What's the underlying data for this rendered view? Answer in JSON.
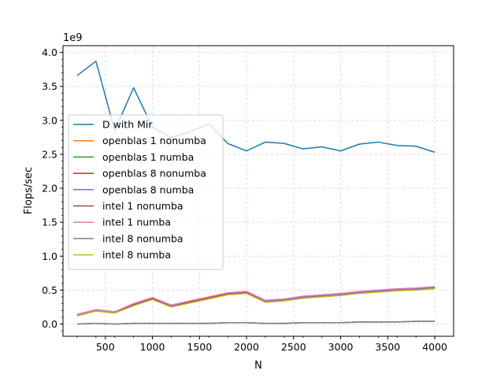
{
  "chart_data": {
    "type": "line",
    "title": "",
    "xlabel": "N",
    "ylabel": "Flops/sec",
    "y_scale_label": "1e9",
    "y_scale": 1000000000,
    "xlim": [
      50,
      4200
    ],
    "ylim": [
      -0.18,
      4.1
    ],
    "x_ticks": [
      500,
      1000,
      1500,
      2000,
      2500,
      3000,
      3500,
      4000
    ],
    "x_tick_labels": [
      "500",
      "1000",
      "1500",
      "2000",
      "2500",
      "3000",
      "3500",
      "4000"
    ],
    "y_ticks": [
      0.0,
      0.5,
      1.0,
      1.5,
      2.0,
      2.5,
      3.0,
      3.5,
      4.0
    ],
    "y_tick_labels": [
      "0.0",
      "0.5",
      "1.0",
      "1.5",
      "2.0",
      "2.5",
      "3.0",
      "3.5",
      "4.0"
    ],
    "grid": true,
    "legend_position": "center-left",
    "x": [
      200,
      400,
      600,
      800,
      1000,
      1200,
      1400,
      1600,
      1800,
      2000,
      2200,
      2400,
      2600,
      2800,
      3000,
      3200,
      3400,
      3600,
      3800,
      4000
    ],
    "series": [
      {
        "name": "D with Mir",
        "color": "#1f77b4",
        "values": [
          3.66,
          3.87,
          2.85,
          3.48,
          2.9,
          2.75,
          2.83,
          2.95,
          2.66,
          2.55,
          2.68,
          2.66,
          2.58,
          2.61,
          2.55,
          2.65,
          2.68,
          2.63,
          2.62,
          2.53
        ]
      },
      {
        "name": "openblas 1 nonumba",
        "color": "#ff7f0e",
        "values": [
          0.13,
          0.2,
          0.17,
          0.28,
          0.37,
          0.26,
          0.32,
          0.38,
          0.44,
          0.46,
          0.33,
          0.35,
          0.39,
          0.41,
          0.43,
          0.46,
          0.48,
          0.5,
          0.51,
          0.53
        ]
      },
      {
        "name": "openblas 1 numba",
        "color": "#2ca02c",
        "values": [
          0.13,
          0.2,
          0.17,
          0.28,
          0.37,
          0.26,
          0.32,
          0.38,
          0.44,
          0.46,
          0.33,
          0.35,
          0.39,
          0.41,
          0.43,
          0.46,
          0.48,
          0.5,
          0.51,
          0.53
        ]
      },
      {
        "name": "openblas 8 nonumba",
        "color": "#d62728",
        "values": [
          0.14,
          0.21,
          0.18,
          0.29,
          0.38,
          0.27,
          0.33,
          0.39,
          0.45,
          0.47,
          0.34,
          0.36,
          0.4,
          0.42,
          0.44,
          0.47,
          0.49,
          0.51,
          0.52,
          0.54
        ]
      },
      {
        "name": "openblas 8 numba",
        "color": "#9467bd",
        "values": [
          0.14,
          0.21,
          0.18,
          0.3,
          0.39,
          0.27,
          0.34,
          0.4,
          0.46,
          0.48,
          0.34,
          0.36,
          0.4,
          0.42,
          0.44,
          0.47,
          0.49,
          0.51,
          0.52,
          0.54
        ]
      },
      {
        "name": "intel 1 nonumba",
        "color": "#8c564b",
        "values": [
          0.0,
          0.01,
          0.0,
          0.01,
          0.01,
          0.01,
          0.01,
          0.01,
          0.02,
          0.02,
          0.01,
          0.01,
          0.02,
          0.02,
          0.02,
          0.03,
          0.03,
          0.03,
          0.04,
          0.04
        ]
      },
      {
        "name": "intel 1 numba",
        "color": "#e377c2",
        "values": [
          0.14,
          0.21,
          0.18,
          0.3,
          0.39,
          0.28,
          0.34,
          0.4,
          0.46,
          0.48,
          0.35,
          0.37,
          0.41,
          0.43,
          0.45,
          0.48,
          0.5,
          0.52,
          0.53,
          0.55
        ]
      },
      {
        "name": "intel 8 nonumba",
        "color": "#7f7f7f",
        "values": [
          0.0,
          0.01,
          0.0,
          0.01,
          0.01,
          0.01,
          0.01,
          0.01,
          0.02,
          0.02,
          0.01,
          0.01,
          0.02,
          0.02,
          0.02,
          0.03,
          0.03,
          0.03,
          0.04,
          0.04
        ]
      },
      {
        "name": "intel 8 numba",
        "color": "#bcbd22",
        "values": [
          0.12,
          0.19,
          0.16,
          0.27,
          0.36,
          0.25,
          0.31,
          0.37,
          0.43,
          0.45,
          0.32,
          0.34,
          0.38,
          0.4,
          0.42,
          0.45,
          0.47,
          0.49,
          0.5,
          0.52
        ]
      }
    ]
  }
}
